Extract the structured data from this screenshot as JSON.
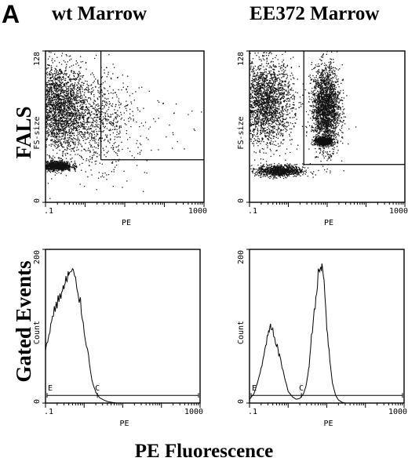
{
  "figure": {
    "panel_label": "A",
    "columns": [
      "wt Marrow",
      "EE372 Marrow"
    ],
    "rows": [
      "FALS",
      "Gated Events"
    ],
    "xlabel_footer": "PE Fluorescence"
  },
  "chart_data": [
    {
      "type": "scatter",
      "title": "wt Marrow",
      "xlabel": "PE",
      "ylabel": "FS-size",
      "xscale": "log",
      "xlim": [
        0.1,
        1000
      ],
      "xticks": [
        ".1",
        "1000"
      ],
      "ylim": [
        0,
        128
      ],
      "yticks": [
        "0",
        "128"
      ],
      "gate": {
        "x": 2.5,
        "y": 36
      },
      "clusters": [
        {
          "x_center": 0.2,
          "x_spread": 0.35,
          "y_center": 80,
          "y_spread": 38,
          "density": "high"
        },
        {
          "x_center": 0.18,
          "x_spread": 0.2,
          "y_center": 31,
          "y_spread": 4,
          "density": "very high"
        },
        {
          "x_center": 1.5,
          "x_spread": 0.5,
          "y_center": 70,
          "y_spread": 40,
          "density": "medium"
        },
        {
          "x_center": 20,
          "x_spread": 0.8,
          "y_center": 60,
          "y_spread": 45,
          "density": "sparse"
        }
      ]
    },
    {
      "type": "scatter",
      "title": "EE372 Marrow",
      "xlabel": "PE",
      "ylabel": "FS-size",
      "xscale": "log",
      "xlim": [
        0.1,
        1000
      ],
      "xticks": [
        ".1",
        "1000"
      ],
      "ylim": [
        0,
        128
      ],
      "yticks": [
        "0",
        "128"
      ],
      "gate": {
        "x": 2.5,
        "y": 32
      },
      "clusters": [
        {
          "x_center": 0.25,
          "x_spread": 0.35,
          "y_center": 85,
          "y_spread": 35,
          "density": "high"
        },
        {
          "x_center": 0.6,
          "x_spread": 0.3,
          "y_center": 27,
          "y_spread": 5,
          "density": "very high"
        },
        {
          "x_center": 9,
          "x_spread": 0.18,
          "y_center": 80,
          "y_spread": 35,
          "density": "high"
        },
        {
          "x_center": 8,
          "x_spread": 0.1,
          "y_center": 52,
          "y_spread": 3,
          "density": "very high"
        }
      ]
    },
    {
      "type": "line",
      "title": "wt Marrow",
      "xlabel": "PE",
      "ylabel": "Count",
      "xscale": "log",
      "xlim": [
        0.1,
        1000
      ],
      "xticks": [
        ".1",
        "1000"
      ],
      "ylim": [
        0,
        200
      ],
      "yticks": [
        "0",
        "200"
      ],
      "markers": [
        {
          "label": "E",
          "x": 0.1
        },
        {
          "label": "C",
          "x": 2.2
        }
      ],
      "marker_bar_y": 10,
      "x": [
        0.1,
        0.13,
        0.16,
        0.2,
        0.25,
        0.3,
        0.35,
        0.4,
        0.5,
        0.6,
        0.8,
        1.0,
        1.3,
        1.6,
        2.0,
        2.5,
        3.2,
        4.0,
        5.0,
        7.0,
        10,
        20,
        50,
        100,
        1000
      ],
      "y": [
        70,
        95,
        118,
        130,
        142,
        150,
        160,
        168,
        170,
        158,
        130,
        95,
        60,
        30,
        14,
        7,
        4,
        2,
        1,
        0,
        0,
        0,
        0,
        0,
        0
      ]
    },
    {
      "type": "line",
      "title": "EE372 Marrow",
      "xlabel": "PE",
      "ylabel": "Count",
      "xscale": "log",
      "xlim": [
        0.1,
        1000
      ],
      "xticks": [
        ".1",
        "1000"
      ],
      "ylim": [
        0,
        200
      ],
      "yticks": [
        "0",
        "200"
      ],
      "markers": [
        {
          "label": "E",
          "x": 0.1
        },
        {
          "label": "C",
          "x": 2.2
        }
      ],
      "marker_bar_y": 10,
      "x": [
        0.1,
        0.13,
        0.16,
        0.2,
        0.25,
        0.3,
        0.35,
        0.4,
        0.5,
        0.6,
        0.8,
        1.0,
        1.3,
        1.6,
        2.0,
        2.5,
        3.0,
        3.5,
        4.0,
        5.0,
        6.0,
        7.0,
        8.0,
        9.0,
        10,
        12,
        14,
        17,
        20,
        25,
        30,
        50,
        100,
        1000
      ],
      "y": [
        5,
        12,
        25,
        45,
        68,
        88,
        98,
        92,
        78,
        60,
        35,
        15,
        8,
        5,
        6,
        12,
        25,
        50,
        85,
        130,
        165,
        178,
        170,
        140,
        100,
        55,
        25,
        10,
        4,
        1,
        0,
        0,
        0,
        0
      ]
    }
  ]
}
